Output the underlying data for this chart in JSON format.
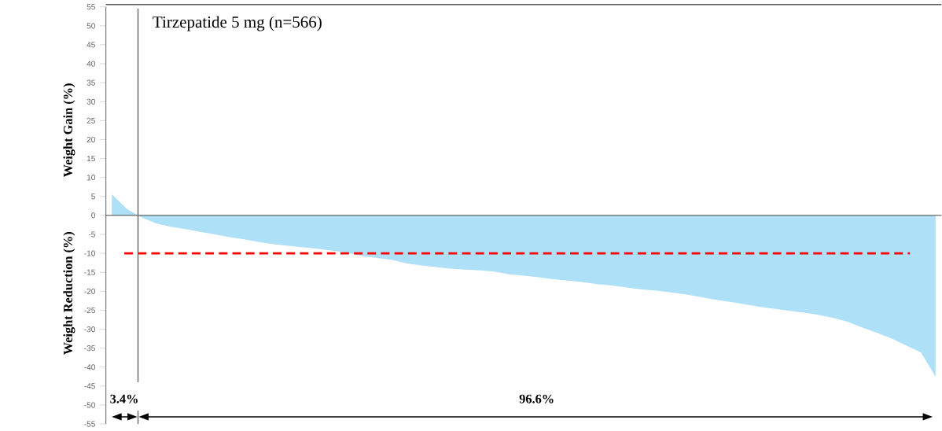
{
  "chart_data": {
    "type": "area",
    "title": "Tirzepatide 5 mg (n=566)",
    "ylabel": "Weight Gain (%)",
    "annotations": [
      "Weight Reduction (%)",
      "3.4%",
      "96.6%"
    ],
    "categories": [
      null,
      null,
      null,
      null,
      null,
      null,
      null,
      null,
      null,
      null,
      null,
      null,
      null,
      null,
      null,
      null,
      null,
      null,
      null,
      null,
      null,
      null,
      null,
      null,
      null,
      null,
      null,
      null,
      null,
      null,
      null,
      null,
      null,
      null,
      null,
      null,
      null,
      null,
      null,
      null,
      null,
      null,
      null,
      null,
      null,
      null,
      null,
      null,
      null,
      null,
      null,
      null,
      null,
      null,
      null,
      null,
      null
    ],
    "series": [
      {
        "color": "#aee1f7",
        "values": [
          5.6,
          1.8,
          -0.5,
          -2.1,
          -3.0,
          -3.6,
          -4.3,
          -5.0,
          -5.7,
          -6.3,
          -7.0,
          -7.6,
          -8.0,
          -8.4,
          -8.8,
          -9.3,
          -9.8,
          -10.7,
          -11.2,
          -11.7,
          -12.6,
          -13.2,
          -13.6,
          -14.0,
          -14.3,
          -14.5,
          -14.8,
          -15.5,
          -15.9,
          -16.3,
          -16.8,
          -17.2,
          -17.6,
          -18.1,
          -18.5,
          -19.0,
          -19.5,
          -19.8,
          -20.3,
          -20.8,
          -21.5,
          -22.2,
          -22.8,
          -23.4,
          -24.1,
          -24.6,
          -25.1,
          -25.6,
          -26.2,
          -27.0,
          -28.0,
          -29.5,
          -30.9,
          -32.4,
          -34.3,
          -36.1,
          -42.5
        ]
      }
    ],
    "ylim": [
      -55,
      55
    ],
    "yticks": [
      -55,
      -50,
      -45,
      -40,
      -35,
      -30,
      -25,
      -20,
      -15,
      -10,
      -5,
      0,
      5,
      10,
      15,
      20,
      25,
      30,
      35,
      40,
      45,
      50,
      55
    ],
    "tick_labels": "y",
    "grid": false,
    "ref_lines": [
      {
        "axis": "y",
        "value": -10,
        "color": "#ff0000",
        "line_style": "dashed"
      }
    ]
  }
}
